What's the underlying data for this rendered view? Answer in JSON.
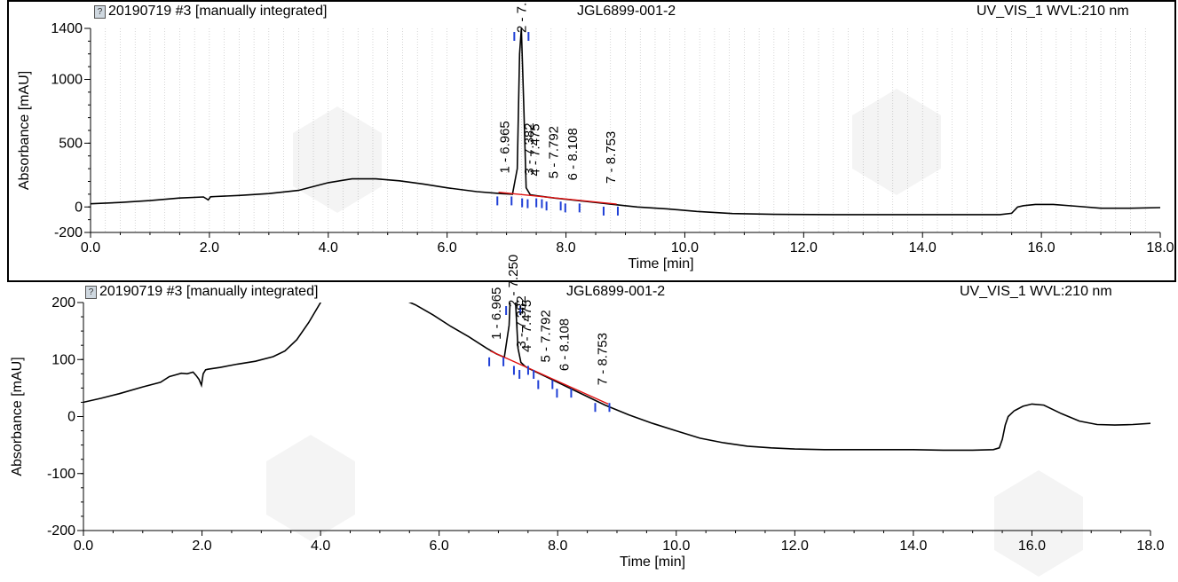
{
  "panels": [
    {
      "header": {
        "left": "20190719 #3 [manually integrated]",
        "center": "JGL6899-001-2",
        "right": "UV_VIS_1 WVL:210 nm"
      }
    },
    {
      "header": {
        "left": "20190719 #3 [manually integrated]",
        "center": "JGL6899-001-2",
        "right": "UV_VIS_1 WVL:210 nm"
      }
    }
  ],
  "colors": {
    "trace": "#000000",
    "peak_marker": "#1f3fd6",
    "baseline": "#e01010",
    "grid": "#bbbbbb",
    "watermark": "#e9e9ee"
  },
  "chart_data": [
    {
      "type": "line",
      "title": "",
      "xlabel": "Time [min]",
      "ylabel": "Absorbance [mAU]",
      "xlim": [
        0,
        18
      ],
      "ylim": [
        -200,
        1400
      ],
      "xticks": [
        0.0,
        2.0,
        4.0,
        6.0,
        8.0,
        10.0,
        12.0,
        14.0,
        16.0,
        18.0
      ],
      "xtick_labels": [
        "0.0",
        "2.0",
        "4.0",
        "6.0",
        "8.0",
        "10.0",
        "12.0",
        "14.0",
        "16.0",
        "18.0"
      ],
      "yticks": [
        -200,
        0,
        500,
        1000,
        1400
      ],
      "ytick_labels": [
        "-200",
        "0",
        "500",
        "1000",
        "1400"
      ],
      "grid": "vertical dotted",
      "peaks": [
        {
          "label": "1 - 6.965",
          "time": 6.965,
          "height": 110
        },
        {
          "label": "2 - 7.250",
          "time": 7.25,
          "height": 1400
        },
        {
          "label": "3 - 7.382",
          "time": 7.382,
          "height": 95
        },
        {
          "label": "4 - 7.475",
          "time": 7.475,
          "height": 88
        },
        {
          "label": "5 - 7.792",
          "time": 7.792,
          "height": 70
        },
        {
          "label": "6 - 8.108",
          "time": 8.108,
          "height": 55
        },
        {
          "label": "7 - 8.753",
          "time": 8.753,
          "height": 30
        }
      ],
      "series": [
        {
          "x": [
            0.0,
            0.5,
            1.0,
            1.5,
            1.9,
            1.98,
            2.02,
            2.1,
            2.5,
            3.0,
            3.5,
            4.0,
            4.4,
            4.8,
            5.2,
            5.6,
            6.0,
            6.5,
            6.9,
            7.1,
            7.18,
            7.22,
            7.25,
            7.29,
            7.33,
            7.4,
            7.5,
            7.8,
            8.1,
            8.5,
            8.8,
            9.2,
            9.7,
            10.2,
            10.8,
            11.5,
            12.5,
            13.5,
            14.5,
            15.3,
            15.5,
            15.6,
            15.7,
            15.9,
            16.2,
            16.6,
            17.0,
            17.5,
            18.0
          ],
          "y": [
            25,
            35,
            50,
            70,
            78,
            55,
            80,
            82,
            90,
            105,
            130,
            190,
            220,
            220,
            205,
            180,
            150,
            120,
            105,
            100,
            300,
            1200,
            1400,
            800,
            150,
            95,
            88,
            70,
            55,
            35,
            20,
            0,
            -15,
            -35,
            -52,
            -58,
            -60,
            -60,
            -60,
            -60,
            -50,
            0,
            10,
            20,
            20,
            5,
            -10,
            -10,
            -5
          ]
        }
      ]
    },
    {
      "type": "line",
      "title": "",
      "xlabel": "Time [min]",
      "ylabel": "Absorbance [mAU]",
      "xlim": [
        0,
        18
      ],
      "ylim": [
        -200,
        200
      ],
      "xticks": [
        0.0,
        2.0,
        4.0,
        6.0,
        8.0,
        10.0,
        12.0,
        14.0,
        16.0,
        18.0
      ],
      "xtick_labels": [
        "0.0",
        "2.0",
        "4.0",
        "6.0",
        "8.0",
        "10.0",
        "12.0",
        "14.0",
        "16.0",
        "18.0"
      ],
      "yticks": [
        -200,
        -100,
        0,
        100,
        200
      ],
      "ytick_labels": [
        "-200",
        "-100",
        "0",
        "100",
        "200"
      ],
      "grid": "none",
      "peaks": [
        {
          "label": "1 - 6.965",
          "time": 6.965,
          "height": 110
        },
        {
          "label": "2 - 7.250",
          "time": 7.25,
          "height": 200
        },
        {
          "label": "3 - 7.382",
          "time": 7.382,
          "height": 95
        },
        {
          "label": "4 - 7.475",
          "time": 7.475,
          "height": 88
        },
        {
          "label": "5 - 7.792",
          "time": 7.792,
          "height": 70
        },
        {
          "label": "6 - 8.108",
          "time": 8.108,
          "height": 55
        },
        {
          "label": "7 - 8.753",
          "time": 8.753,
          "height": 30
        }
      ],
      "series": [
        {
          "x": [
            0.0,
            0.3,
            0.6,
            1.0,
            1.3,
            1.45,
            1.55,
            1.65,
            1.75,
            1.85,
            1.9,
            1.95,
            1.99,
            2.02,
            2.06,
            2.1,
            2.3,
            2.6,
            2.9,
            3.2,
            3.4,
            3.6,
            3.8,
            4.0,
            4.2,
            4.4,
            4.6,
            5.0,
            5.4,
            5.6,
            5.9,
            6.2,
            6.5,
            6.8,
            6.965,
            7.1,
            7.18,
            7.22,
            7.25,
            7.29,
            7.33,
            7.38,
            7.45,
            7.5,
            7.8,
            8.1,
            8.5,
            8.8,
            9.2,
            9.6,
            10.0,
            10.4,
            10.8,
            11.2,
            11.6,
            12.0,
            12.5,
            13.0,
            13.5,
            14.0,
            14.5,
            15.0,
            15.35,
            15.45,
            15.5,
            15.55,
            15.6,
            15.7,
            15.85,
            16.0,
            16.2,
            16.5,
            16.8,
            17.1,
            17.4,
            17.7,
            18.0
          ],
          "y": [
            25,
            32,
            40,
            52,
            60,
            70,
            73,
            76,
            75,
            78,
            72,
            65,
            55,
            75,
            82,
            83,
            86,
            92,
            97,
            105,
            115,
            135,
            165,
            200,
            230,
            240,
            235,
            220,
            205,
            196,
            178,
            158,
            140,
            120,
            110,
            104,
            160,
            260,
            300,
            200,
            120,
            95,
            88,
            85,
            70,
            55,
            35,
            20,
            3,
            -12,
            -25,
            -38,
            -46,
            -52,
            -55,
            -57,
            -58,
            -58,
            -58,
            -58,
            -59,
            -59,
            -58,
            -55,
            -40,
            -15,
            0,
            10,
            18,
            22,
            20,
            5,
            -8,
            -14,
            -15,
            -14,
            -12
          ]
        }
      ]
    }
  ]
}
